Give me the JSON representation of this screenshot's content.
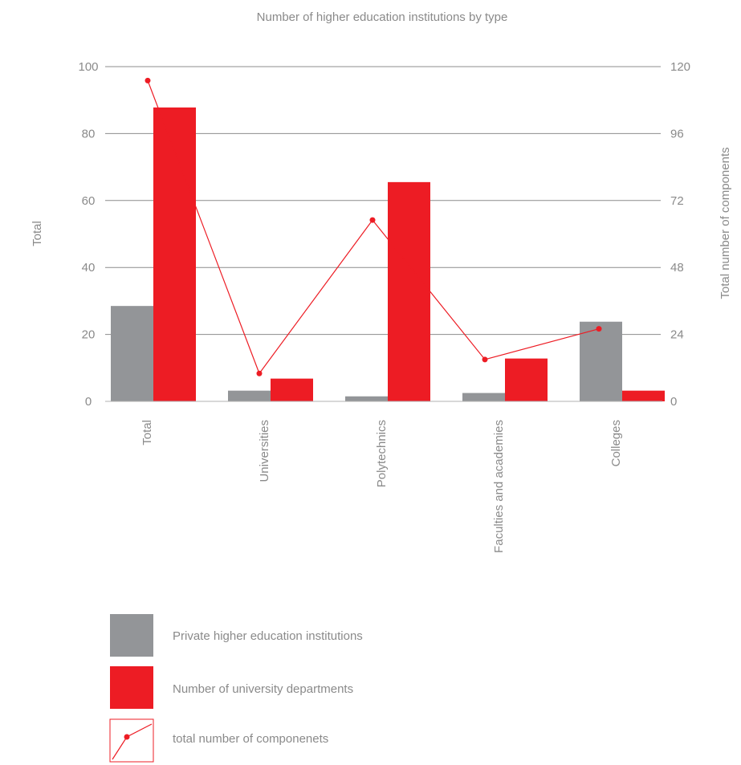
{
  "chart_data": {
    "type": "bar",
    "title": "Number of higher education institutions by type",
    "categories": [
      "Total",
      "Universities",
      "Polytechnics",
      "Faculties and academies",
      "Colleges"
    ],
    "ylabel": "Total",
    "y2label": "Total number of components",
    "ylim": [
      0,
      100
    ],
    "y2lim": [
      0,
      120
    ],
    "yticks": [
      0,
      20,
      40,
      60,
      80,
      100
    ],
    "y2ticks": [
      0,
      24,
      48,
      72,
      96,
      120
    ],
    "grid": true,
    "legend_placement": "bottom-left",
    "series": [
      {
        "name": "Private higher education institutions",
        "type": "bar",
        "axis": "left",
        "color": "#939598",
        "values": [
          28.5,
          3.2,
          1.5,
          2.5,
          23.8
        ]
      },
      {
        "name": "Number of university departments",
        "type": "bar",
        "axis": "left",
        "color": "#ed1c24",
        "values": [
          87.8,
          6.8,
          65.5,
          12.8,
          3.2
        ]
      },
      {
        "name": "total number of componenets",
        "type": "line",
        "axis": "right",
        "color": "#ed1c24",
        "values": [
          115,
          10,
          65,
          15,
          26
        ]
      }
    ]
  }
}
